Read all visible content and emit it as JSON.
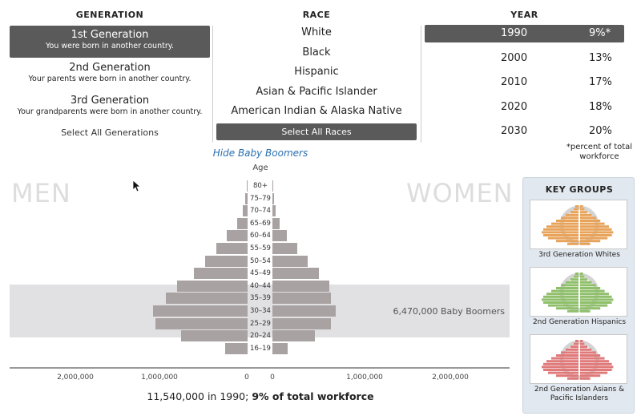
{
  "generation": {
    "heading": "GENERATION",
    "options": [
      {
        "title": "1st Generation",
        "subtitle": "You were born in another country.",
        "selected": true
      },
      {
        "title": "2nd Generation",
        "subtitle": "Your parents were born in another country.",
        "selected": false
      },
      {
        "title": "3rd Generation",
        "subtitle": "Your grandparents were born in another country.",
        "selected": false
      }
    ],
    "select_all": "Select All Generations"
  },
  "race": {
    "heading": "RACE",
    "options": [
      "White",
      "Black",
      "Hispanic",
      "Asian & Pacific Islander",
      "American Indian & Alaska Native"
    ],
    "select_all": "Select All Races"
  },
  "year": {
    "heading": "YEAR",
    "rows": [
      {
        "year": "1990",
        "percent": "9%*",
        "selected": true
      },
      {
        "year": "2000",
        "percent": "13%",
        "selected": false
      },
      {
        "year": "2010",
        "percent": "17%",
        "selected": false
      },
      {
        "year": "2020",
        "percent": "18%",
        "selected": false
      },
      {
        "year": "2030",
        "percent": "20%",
        "selected": false
      }
    ],
    "note": "*percent of total workforce"
  },
  "toggle_boomers": "Hide Baby Boomers",
  "pyramid": {
    "men_label": "MEN",
    "women_label": "WOMEN",
    "age_heading": "Age",
    "boomer_label": "6,470,000 Baby Boomers",
    "axis_max": 2000000,
    "ticks": [
      "2,000,000",
      "1,000,000",
      "0",
      "0",
      "1,000,000",
      "2,000,000"
    ],
    "summary_plain": "11,540,000 in 1990; ",
    "summary_bold": "9% of total workforce"
  },
  "chart_data": {
    "type": "bar",
    "categories": [
      "80+",
      "75–79",
      "70–74",
      "65–69",
      "60–64",
      "55–59",
      "50–54",
      "45–49",
      "40–44",
      "35–39",
      "30–34",
      "25–29",
      "20–24",
      "16–19"
    ],
    "series": [
      {
        "name": "MEN",
        "values": [
          10000,
          25000,
          50000,
          120000,
          230000,
          350000,
          480000,
          600000,
          790000,
          920000,
          1060000,
          1040000,
          750000,
          250000
        ]
      },
      {
        "name": "WOMEN",
        "values": [
          10000,
          20000,
          40000,
          80000,
          160000,
          280000,
          400000,
          520000,
          640000,
          660000,
          710000,
          660000,
          480000,
          170000
        ]
      }
    ],
    "xlim": [
      0,
      2000000
    ]
  },
  "key_groups": {
    "heading": "KEY GROUPS",
    "items": [
      {
        "caption": "3rd Generation Whites",
        "color": "#e8a35a"
      },
      {
        "caption": "2nd Generation Hispanics",
        "color": "#8fbf6a"
      },
      {
        "caption": "2nd Generation Asians & Pacific Islanders",
        "color": "#e07a7a"
      }
    ]
  }
}
